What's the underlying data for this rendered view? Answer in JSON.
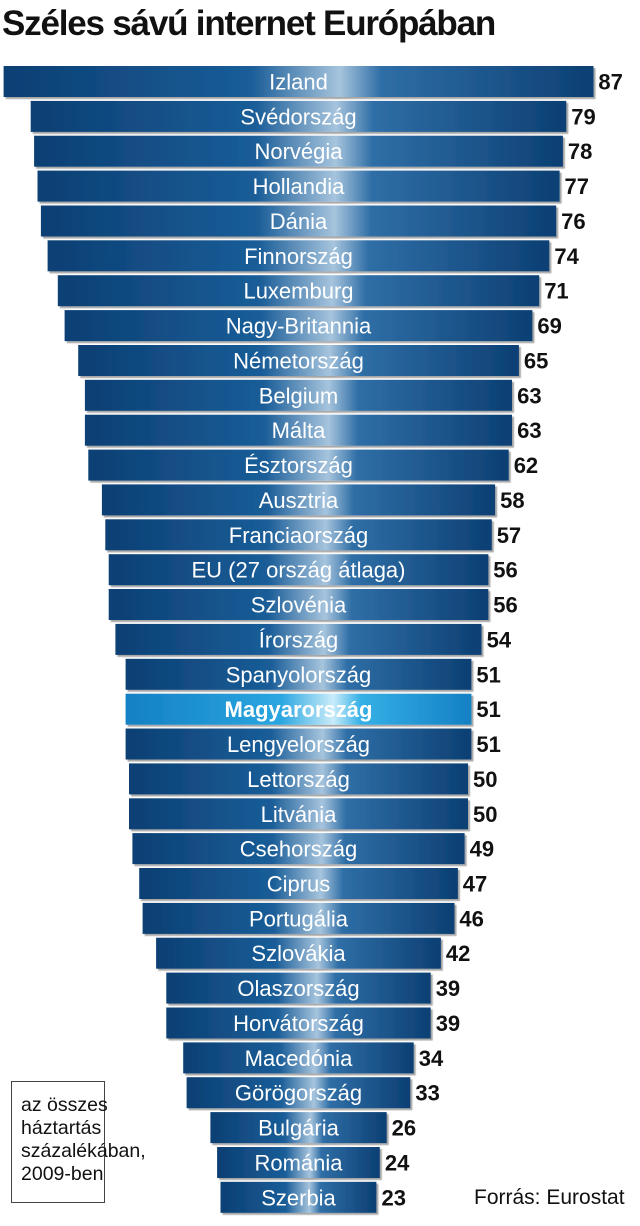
{
  "title": "Széles sávú internet Európában",
  "note": {
    "lines": [
      "az összes",
      "háztartás",
      "százalékában,",
      "2009-ben"
    ]
  },
  "source": "Forrás: Eurostat",
  "colors": {
    "bar": "#0e4a80",
    "bar_highlight": "#2ba3dc",
    "value_text": "#111111"
  },
  "chart_data": {
    "type": "bar",
    "orientation": "horizontal",
    "categories": [
      "Izland",
      "Svédország",
      "Norvégia",
      "Hollandia",
      "Dánia",
      "Finnország",
      "Luxemburg",
      "Nagy-Britannia",
      "Németország",
      "Belgium",
      "Málta",
      "Észtország",
      "Ausztria",
      "Franciaország",
      "EU (27 ország átlaga)",
      "Szlovénia",
      "Írország",
      "Spanyolország",
      "Magyarország",
      "Lengyelország",
      "Lettország",
      "Litvánia",
      "Csehország",
      "Ciprus",
      "Portugália",
      "Szlovákia",
      "Olaszország",
      "Horvátország",
      "Macedónia",
      "Görögország",
      "Bulgária",
      "Románia",
      "Szerbia"
    ],
    "values": [
      87,
      79,
      78,
      77,
      76,
      74,
      71,
      69,
      65,
      63,
      63,
      62,
      58,
      57,
      56,
      56,
      54,
      51,
      51,
      51,
      50,
      50,
      49,
      47,
      46,
      42,
      39,
      39,
      34,
      33,
      26,
      24,
      23
    ],
    "highlight": "Magyarország",
    "title": "Széles sávú internet Európában",
    "xlabel": "",
    "ylabel": "",
    "grid": false,
    "legend": false
  }
}
